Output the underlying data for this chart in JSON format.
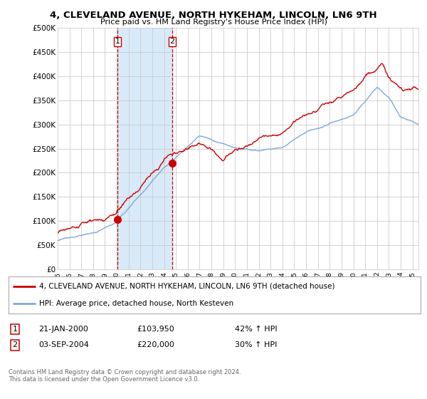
{
  "title": "4, CLEVELAND AVENUE, NORTH HYKEHAM, LINCOLN, LN6 9TH",
  "subtitle": "Price paid vs. HM Land Registry's House Price Index (HPI)",
  "legend_line1": "4, CLEVELAND AVENUE, NORTH HYKEHAM, LINCOLN, LN6 9TH (detached house)",
  "legend_line2": "HPI: Average price, detached house, North Kesteven",
  "transaction1_date": "21-JAN-2000",
  "transaction1_price": "£103,950",
  "transaction1_hpi": "42% ↑ HPI",
  "transaction1_year": 2000.06,
  "transaction1_value": 103950,
  "transaction2_date": "03-SEP-2004",
  "transaction2_price": "£220,000",
  "transaction2_hpi": "30% ↑ HPI",
  "transaction2_year": 2004.67,
  "transaction2_value": 220000,
  "hpi_color": "#7aaadd",
  "price_color": "#cc0000",
  "marker_color": "#cc0000",
  "vline_color": "#cc0000",
  "shade_color": "#d8eaf8",
  "ylim": [
    0,
    500000
  ],
  "yticks": [
    0,
    50000,
    100000,
    150000,
    200000,
    250000,
    300000,
    350000,
    400000,
    450000,
    500000
  ],
  "xlim_start": 1995.0,
  "xlim_end": 2025.5,
  "footer_text": "Contains HM Land Registry data © Crown copyright and database right 2024.\nThis data is licensed under the Open Government Licence v3.0.",
  "background_color": "#ffffff",
  "grid_color": "#cccccc"
}
